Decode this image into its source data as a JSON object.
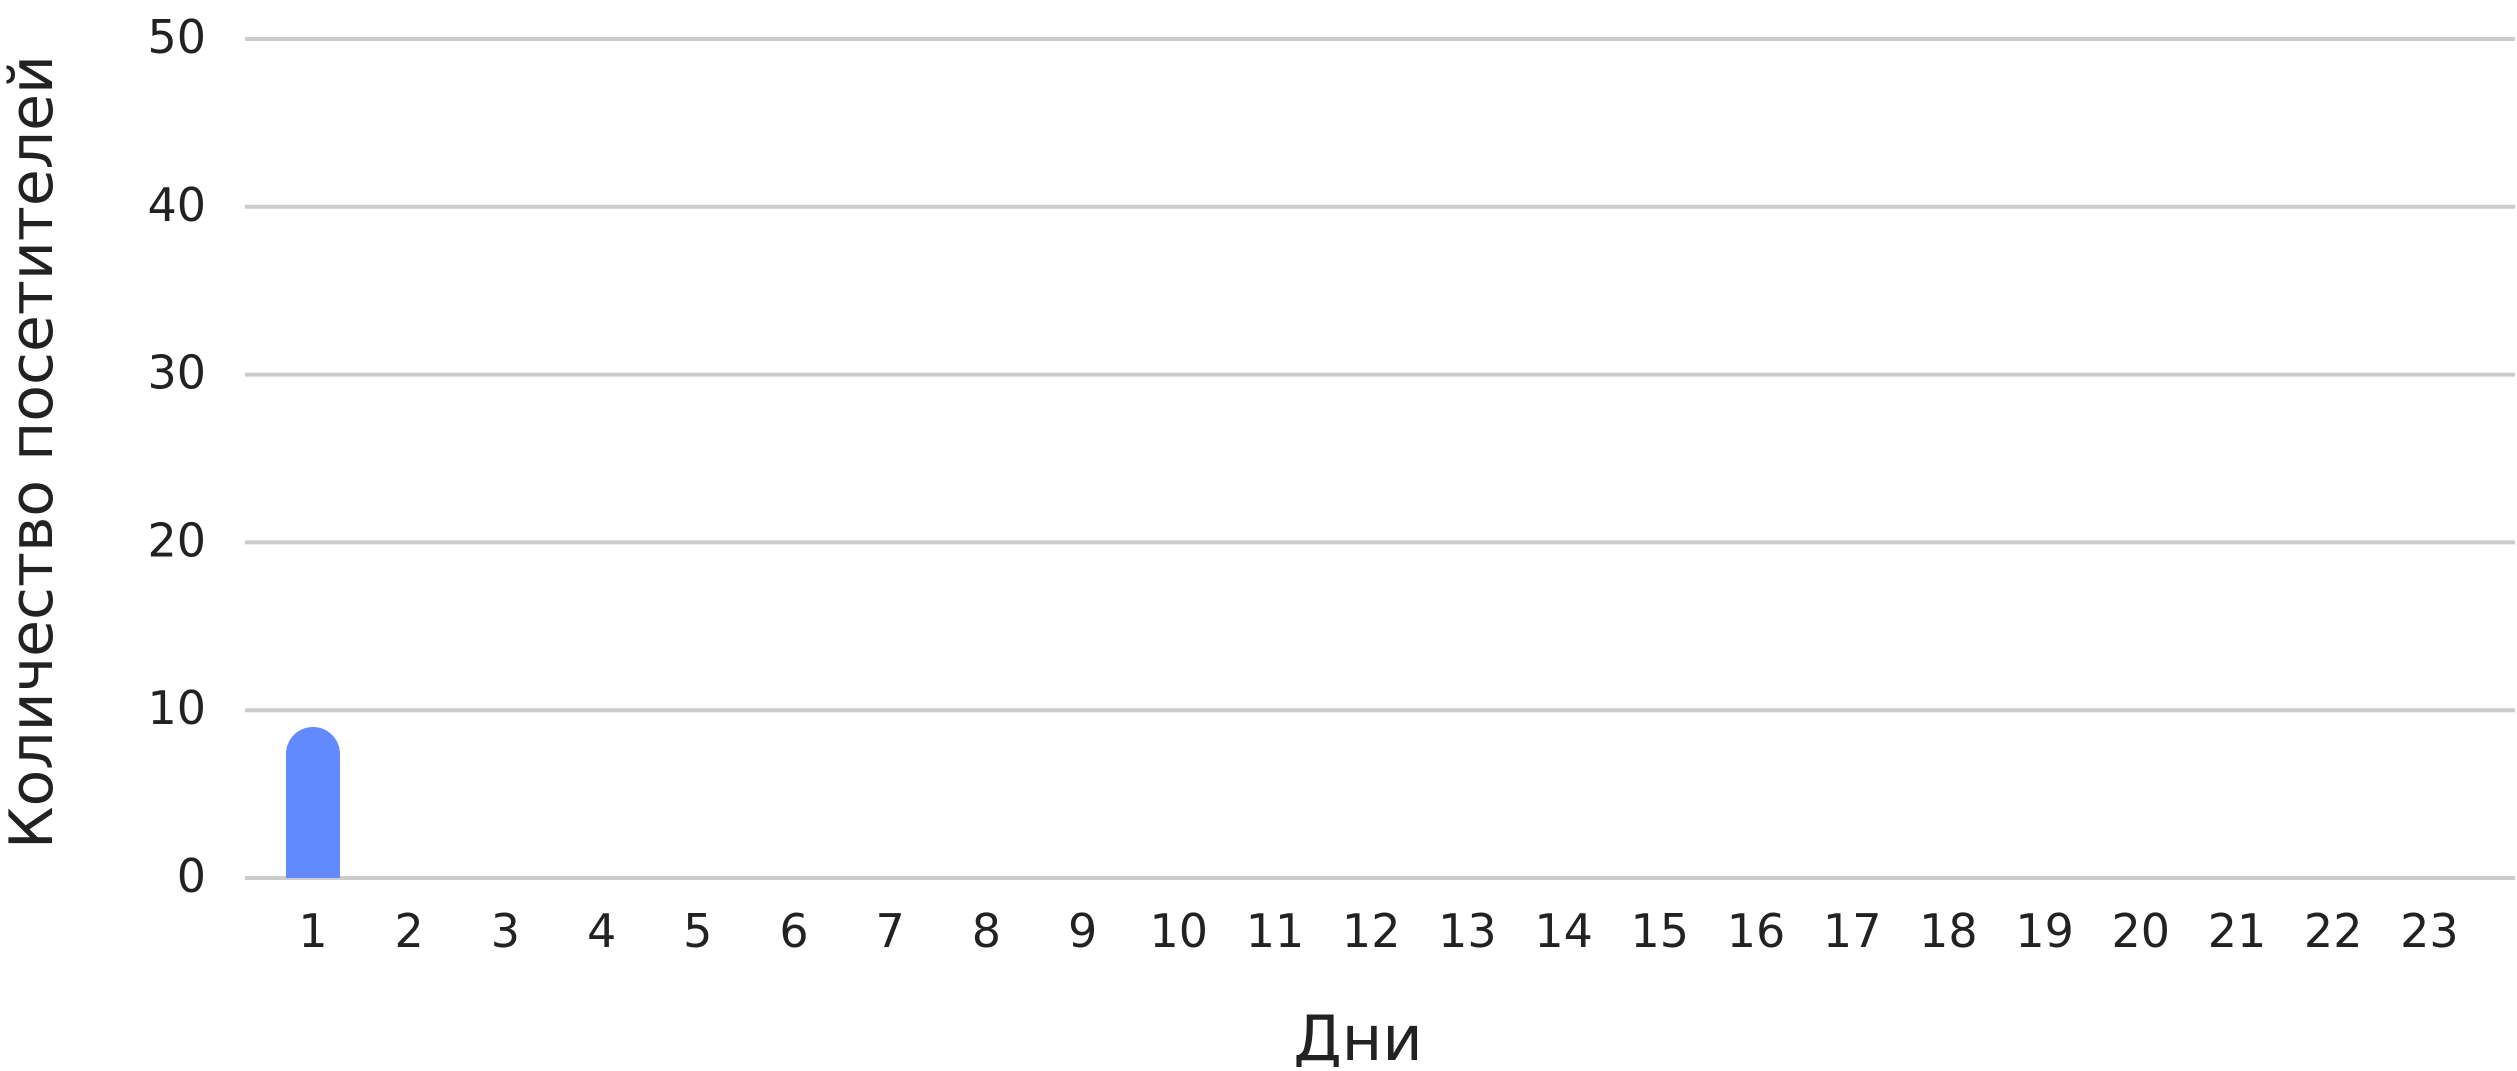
{
  "chart_data": {
    "type": "bar",
    "title": "",
    "xlabel": "Дни",
    "ylabel": "Количество посетителей",
    "categories": [
      "1",
      "2",
      "3",
      "4",
      "5",
      "6",
      "7",
      "8",
      "9",
      "10",
      "11",
      "12",
      "13",
      "14",
      "15",
      "16",
      "17",
      "18",
      "19",
      "20",
      "21",
      "22",
      "23"
    ],
    "values": [
      9,
      0,
      0,
      0,
      0,
      0,
      0,
      0,
      0,
      0,
      0,
      0,
      0,
      0,
      0,
      0,
      0,
      0,
      0,
      0,
      0,
      0,
      0
    ],
    "ylim": [
      0,
      50
    ],
    "yticks": [
      0,
      10,
      20,
      30,
      40,
      50
    ],
    "grid": true,
    "legend": "none",
    "colors": {
      "bar": "#6389ff",
      "grid": "#cccccc"
    }
  }
}
